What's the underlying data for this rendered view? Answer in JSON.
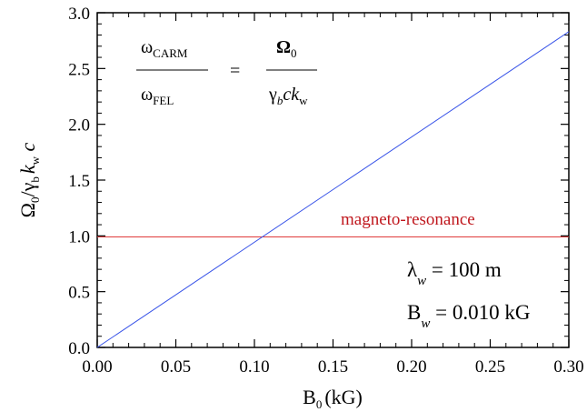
{
  "chart_data": {
    "type": "line",
    "title": "",
    "xlabel": {
      "main": "B",
      "sub": "0",
      "unit": "(kG)"
    },
    "ylabel": {
      "parts": [
        "Ω",
        "0",
        "/γ",
        "b",
        "k",
        "w",
        " c"
      ]
    },
    "xlim": [
      0.0,
      0.3
    ],
    "ylim": [
      0.0,
      3.0
    ],
    "x_ticks": [
      0.0,
      0.05,
      0.1,
      0.15,
      0.2,
      0.25,
      0.3
    ],
    "x_tick_labels": [
      "0.00",
      "0.05",
      "0.10",
      "0.15",
      "0.20",
      "0.25",
      "0.30"
    ],
    "y_ticks": [
      0.0,
      0.5,
      1.0,
      1.5,
      2.0,
      2.5,
      3.0
    ],
    "y_tick_labels": [
      "0.0",
      "0.5",
      "1.0",
      "1.5",
      "2.0",
      "2.5",
      "3.0"
    ],
    "grid": false,
    "series": [
      {
        "x": [
          0.0,
          0.3
        ],
        "y": [
          0.0,
          2.83
        ],
        "color": "#3a55e8"
      }
    ],
    "reference_lines": [
      {
        "orientation": "horizontal",
        "y": 0.99,
        "color": "#e03a3a",
        "label": "magneto-resonance"
      }
    ],
    "equation": {
      "lhs_num": "ω",
      "lhs_num_sub": "CARM",
      "lhs_den": "ω",
      "lhs_den_sub": "FEL",
      "equals": "=",
      "rhs_num": "Ω",
      "rhs_num_sub": "0",
      "rhs_den_gamma": "γ",
      "rhs_den_gamma_sub": "b",
      "rhs_den_c": "c",
      "rhs_den_k": "k",
      "rhs_den_k_sub": "w"
    },
    "parameters": [
      {
        "symbol": "λ",
        "sub": "w",
        "value": " = 100 m"
      },
      {
        "symbol": "B",
        "sub": "w",
        "value": " = 0.010 kG"
      }
    ]
  }
}
